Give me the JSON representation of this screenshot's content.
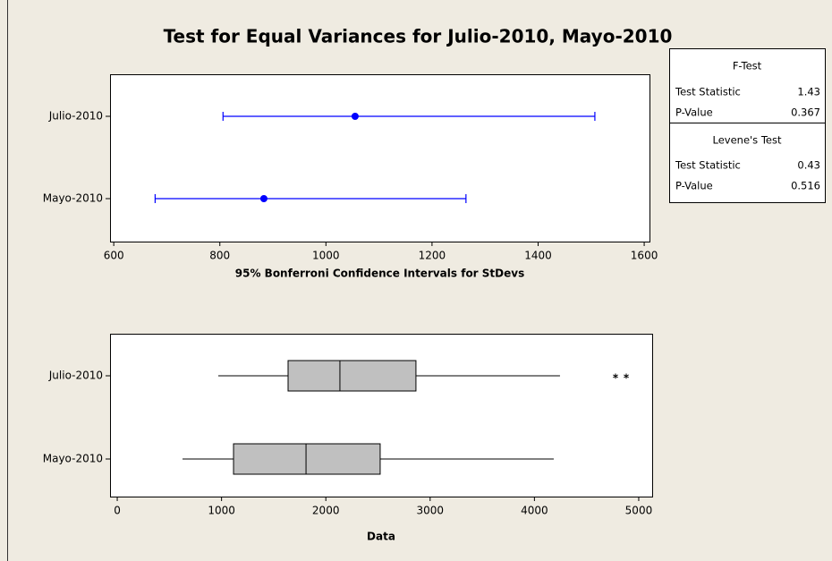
{
  "title": "Test for Equal Variances for Julio-2010, Mayo-2010",
  "chart_data": [
    {
      "type": "interval",
      "xlabel": "95% Bonferroni Confidence Intervals for StDevs",
      "categories": [
        "Julio-2010",
        "Mayo-2010"
      ],
      "values": [
        1055,
        883
      ],
      "lower": [
        806,
        678
      ],
      "upper": [
        1507,
        1264
      ],
      "color": "#0000ff",
      "xlim": [
        593,
        1610
      ],
      "xticks": [
        600,
        800,
        1000,
        1200,
        1400,
        1600
      ]
    },
    {
      "type": "box",
      "xlabel": "Data",
      "categories": [
        "Julio-2010",
        "Mayo-2010"
      ],
      "whisker_low": [
        969,
        626
      ],
      "q1": [
        1638,
        1115
      ],
      "median": [
        2135,
        1810
      ],
      "q3": [
        2864,
        2521
      ],
      "whisker_high": [
        4245,
        4185
      ],
      "outliers": [
        [
          4777,
          4880
        ],
        []
      ],
      "color": "#c0c0c0",
      "xlim": [
        -69,
        5129
      ],
      "xticks": [
        0,
        1000,
        2000,
        3000,
        4000,
        5000
      ]
    }
  ],
  "stats_table": {
    "f_test": {
      "heading": "F-Test",
      "rows": [
        [
          "Test Statistic",
          1.43
        ],
        [
          "P-Value",
          0.367
        ]
      ]
    },
    "levene": {
      "heading": "Levene's Test",
      "rows": [
        [
          "Test Statistic",
          0.43
        ],
        [
          "P-Value",
          0.516
        ]
      ]
    }
  }
}
